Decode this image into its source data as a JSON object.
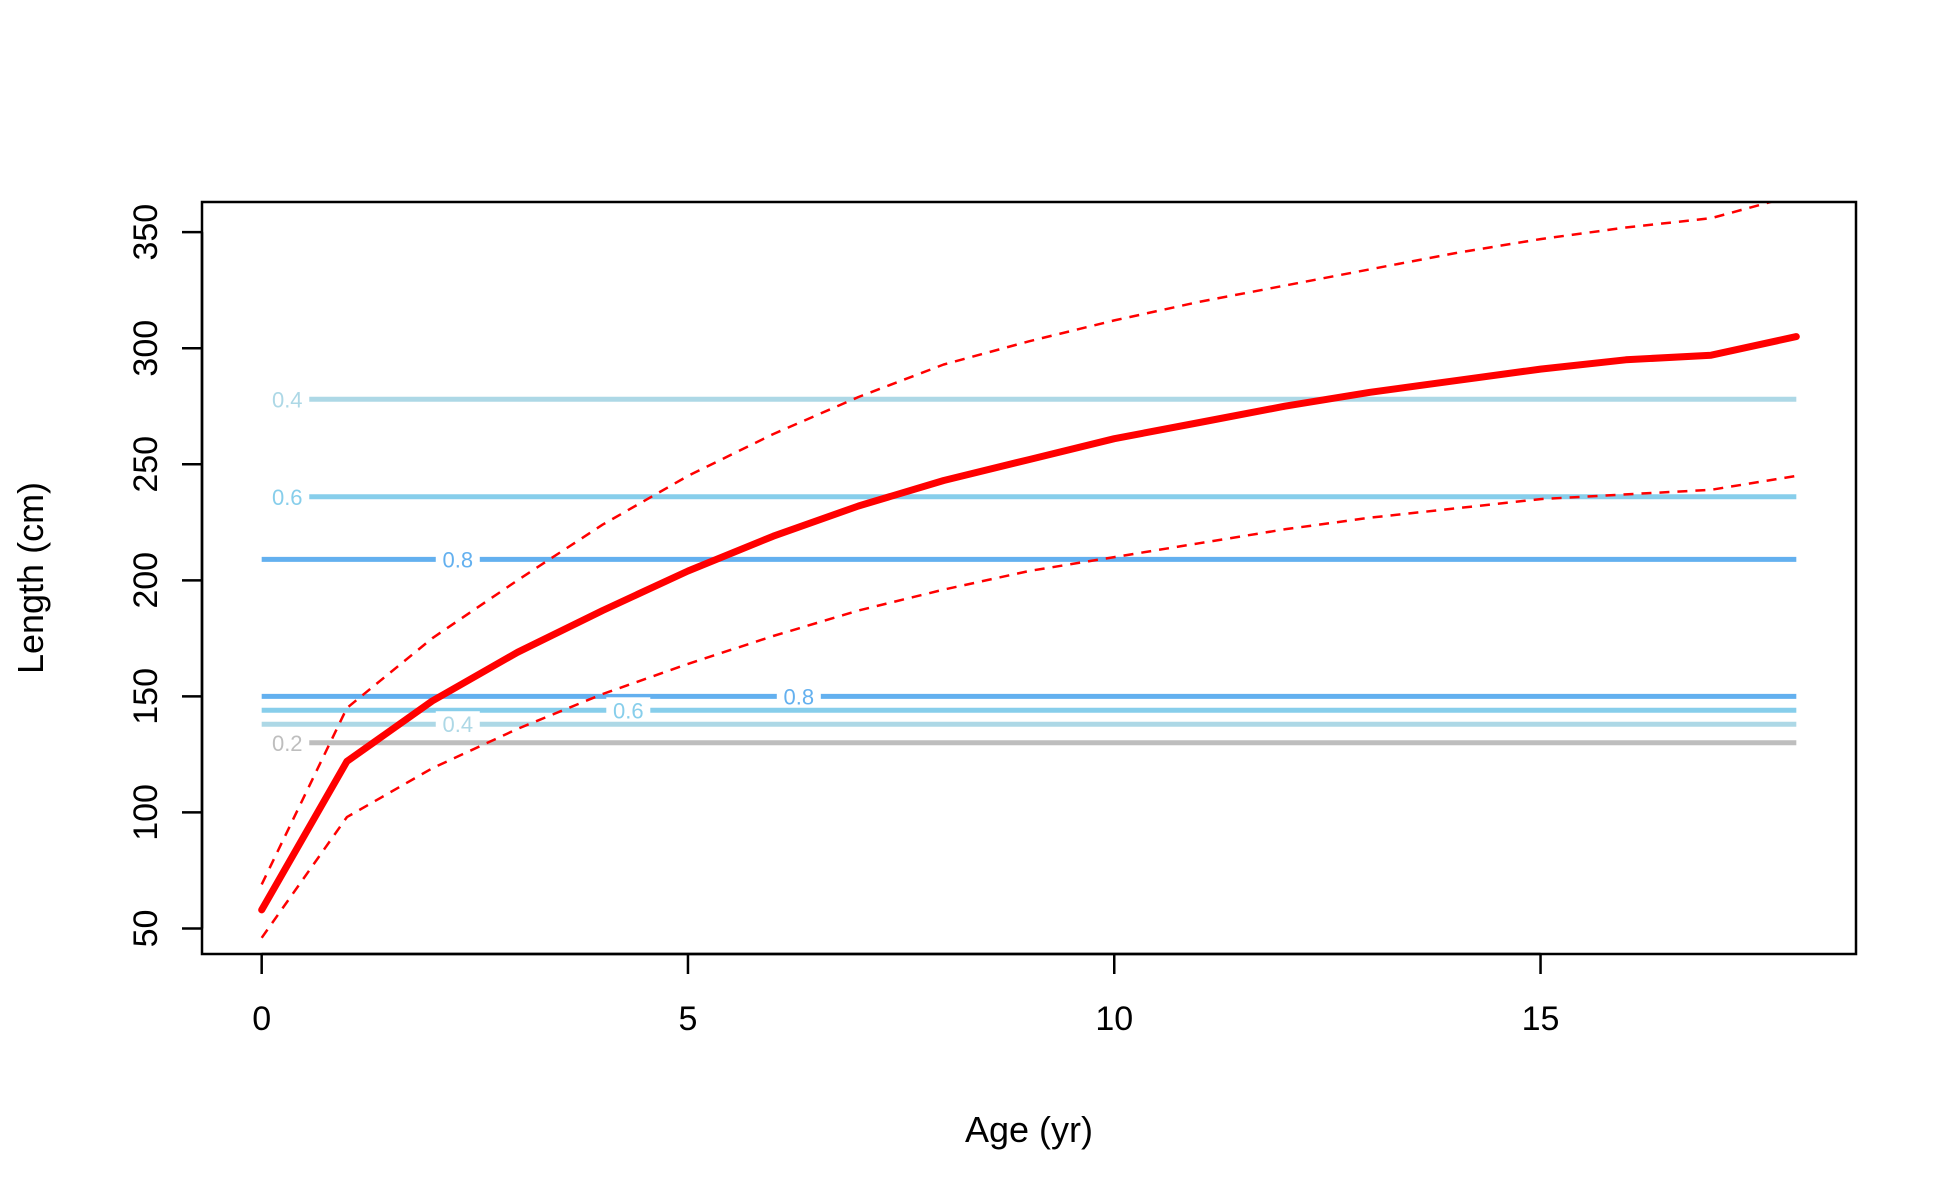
{
  "chart_data": {
    "type": "line",
    "title": "",
    "xlabel": "Age (yr)",
    "ylabel": "Length (cm)",
    "xlim": [
      -0.7,
      18.7
    ],
    "ylim": [
      39,
      363
    ],
    "xticks": [
      0,
      5,
      10,
      15
    ],
    "yticks": [
      50,
      100,
      150,
      200,
      250,
      300,
      350
    ],
    "grid": false,
    "legend": "none",
    "series": [
      {
        "role": "mean",
        "color": "#ff0000",
        "style": "solid-thick",
        "x": [
          0,
          1,
          2,
          3,
          4,
          5,
          6,
          7,
          8,
          9,
          10,
          11,
          12,
          13,
          14,
          15,
          16,
          17,
          18
        ],
        "y": [
          58,
          122,
          148,
          169,
          187,
          204,
          219,
          232,
          243,
          252,
          261,
          268,
          275,
          281,
          286,
          291,
          295,
          297,
          305
        ]
      },
      {
        "role": "upper",
        "color": "#ff0000",
        "style": "dashed",
        "x": [
          0,
          1,
          2,
          3,
          4,
          5,
          6,
          7,
          8,
          9,
          10,
          11,
          12,
          13,
          14,
          15,
          16,
          17,
          18
        ],
        "y": [
          69,
          145,
          175,
          200,
          224,
          245,
          263,
          279,
          293,
          303,
          312,
          320,
          327,
          334,
          341,
          347,
          352,
          356,
          366
        ]
      },
      {
        "role": "lower",
        "color": "#ff0000",
        "style": "dashed",
        "x": [
          0,
          1,
          2,
          3,
          4,
          5,
          6,
          7,
          8,
          9,
          10,
          11,
          12,
          13,
          14,
          15,
          16,
          17,
          18
        ],
        "y": [
          46,
          98,
          119,
          136,
          151,
          164,
          176,
          187,
          196,
          204,
          210,
          216,
          222,
          227,
          231,
          235,
          237,
          239,
          245
        ]
      }
    ],
    "contours": [
      {
        "level": 0.4,
        "label": "0.4",
        "y": 278,
        "x_start": 0.55,
        "x_end": 18,
        "label_x": 0.3,
        "color": "#add8e6"
      },
      {
        "level": 0.6,
        "label": "0.6",
        "y": 236,
        "x_start": 0.55,
        "x_end": 18,
        "label_x": 0.3,
        "color": "#87ceeb"
      },
      {
        "level": 0.8,
        "label": "0.8",
        "y": 209,
        "x_start": 0,
        "x_end": 18,
        "label_x": 2.3,
        "color": "#63b0ef"
      },
      {
        "level": 0.8,
        "label": "0.8",
        "y": 150,
        "x_start": 0,
        "x_end": 18,
        "label_x": 6.3,
        "color": "#63b0ef"
      },
      {
        "level": 0.6,
        "label": "0.6",
        "y": 144,
        "x_start": 0,
        "x_end": 18,
        "label_x": 4.3,
        "color": "#87ceeb"
      },
      {
        "level": 0.4,
        "label": "0.4",
        "y": 138,
        "x_start": 0,
        "x_end": 18,
        "label_x": 2.3,
        "color": "#add8e6"
      },
      {
        "level": 0.2,
        "label": "0.2",
        "y": 130,
        "x_start": 0.55,
        "x_end": 18,
        "label_x": 0.3,
        "color": "#bebebe"
      }
    ]
  }
}
